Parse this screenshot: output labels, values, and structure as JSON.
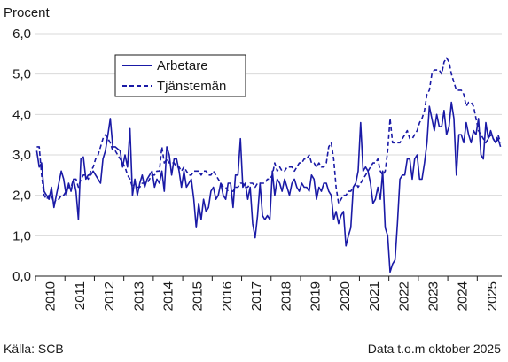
{
  "chart_data": {
    "type": "line",
    "ylabel": "Procent",
    "ylim": [
      0,
      6
    ],
    "yticks": [
      "0,0",
      "1,0",
      "2,0",
      "3,0",
      "4,0",
      "5,0",
      "6,0"
    ],
    "xticks": [
      "2010",
      "2011",
      "2012",
      "2013",
      "2014",
      "2015",
      "2016",
      "2017",
      "2018",
      "2019",
      "2020",
      "2021",
      "2022",
      "2023",
      "2024",
      "2025"
    ],
    "x_start": "2010-01",
    "x_end": "2025-10",
    "grid": "horizontal",
    "legend_position": "top-left",
    "colors": {
      "series": "#1a1aa6",
      "grid": "#d9d9d9",
      "axis": "#1a1a1a"
    },
    "series": [
      {
        "name": "Arbetare",
        "line_style": "solid",
        "x": [
          "2010-01",
          "2010-02",
          "2010-03",
          "2010-04",
          "2010-05",
          "2010-06",
          "2010-07",
          "2010-08",
          "2010-09",
          "2010-10",
          "2010-11",
          "2010-12",
          "2011-01",
          "2011-02",
          "2011-03",
          "2011-04",
          "2011-05",
          "2011-06",
          "2011-07",
          "2011-08",
          "2011-09",
          "2011-10",
          "2011-11",
          "2011-12",
          "2012-01",
          "2012-02",
          "2012-03",
          "2012-04",
          "2012-05",
          "2012-06",
          "2012-07",
          "2012-08",
          "2012-09",
          "2012-10",
          "2012-11",
          "2012-12",
          "2013-01",
          "2013-02",
          "2013-03",
          "2013-04",
          "2013-05",
          "2013-06",
          "2013-07",
          "2013-08",
          "2013-09",
          "2013-10",
          "2013-11",
          "2013-12",
          "2014-01",
          "2014-02",
          "2014-03",
          "2014-04",
          "2014-05",
          "2014-06",
          "2014-07",
          "2014-08",
          "2014-09",
          "2014-10",
          "2014-11",
          "2014-12",
          "2015-01",
          "2015-02",
          "2015-03",
          "2015-04",
          "2015-05",
          "2015-06",
          "2015-07",
          "2015-08",
          "2015-09",
          "2015-10",
          "2015-11",
          "2015-12",
          "2016-01",
          "2016-02",
          "2016-03",
          "2016-04",
          "2016-05",
          "2016-06",
          "2016-07",
          "2016-08",
          "2016-09",
          "2016-10",
          "2016-11",
          "2016-12",
          "2017-01",
          "2017-02",
          "2017-03",
          "2017-04",
          "2017-05",
          "2017-06",
          "2017-07",
          "2017-08",
          "2017-09",
          "2017-10",
          "2017-11",
          "2017-12",
          "2018-01",
          "2018-02",
          "2018-03",
          "2018-04",
          "2018-05",
          "2018-06",
          "2018-07",
          "2018-08",
          "2018-09",
          "2018-10",
          "2018-11",
          "2018-12",
          "2019-01",
          "2019-02",
          "2019-03",
          "2019-04",
          "2019-05",
          "2019-06",
          "2019-07",
          "2019-08",
          "2019-09",
          "2019-10",
          "2019-11",
          "2019-12",
          "2020-01",
          "2020-02",
          "2020-03",
          "2020-04",
          "2020-05",
          "2020-06",
          "2020-07",
          "2020-08",
          "2020-09",
          "2020-10",
          "2020-11",
          "2020-12",
          "2021-01",
          "2021-02",
          "2021-03",
          "2021-04",
          "2021-05",
          "2021-06",
          "2021-07",
          "2021-08",
          "2021-09",
          "2021-10",
          "2021-11",
          "2021-12",
          "2022-01",
          "2022-02",
          "2022-03",
          "2022-04",
          "2022-05",
          "2022-06",
          "2022-07",
          "2022-08",
          "2022-09",
          "2022-10",
          "2022-11",
          "2022-12",
          "2023-01",
          "2023-02",
          "2023-03",
          "2023-04",
          "2023-05",
          "2023-06",
          "2023-07",
          "2023-08",
          "2023-09",
          "2023-10",
          "2023-11",
          "2023-12",
          "2024-01",
          "2024-02",
          "2024-03",
          "2024-04",
          "2024-05",
          "2024-06",
          "2024-07",
          "2024-08",
          "2024-09",
          "2024-10",
          "2024-11",
          "2024-12",
          "2025-01",
          "2025-02",
          "2025-03",
          "2025-04",
          "2025-05",
          "2025-06",
          "2025-07",
          "2025-08",
          "2025-09",
          "2025-10"
        ],
        "y": [
          3.1,
          2.7,
          2.8,
          2.1,
          2.0,
          1.9,
          2.2,
          1.7,
          2.0,
          2.3,
          2.6,
          2.4,
          2.0,
          2.3,
          2.1,
          2.4,
          2.1,
          1.4,
          2.9,
          2.95,
          2.4,
          2.5,
          2.5,
          2.6,
          2.5,
          2.4,
          2.3,
          2.9,
          3.1,
          3.5,
          3.9,
          3.2,
          3.2,
          3.15,
          3.1,
          2.7,
          3.0,
          2.7,
          3.65,
          2.0,
          2.4,
          2.0,
          2.3,
          2.5,
          2.2,
          2.4,
          2.5,
          2.6,
          2.2,
          2.4,
          2.3,
          2.6,
          2.1,
          3.2,
          3.0,
          2.5,
          2.9,
          2.9,
          2.6,
          2.2,
          2.6,
          2.2,
          2.3,
          2.4,
          1.9,
          1.2,
          1.8,
          1.4,
          1.9,
          1.6,
          1.7,
          2.1,
          2.2,
          1.9,
          2.0,
          2.3,
          2.0,
          1.9,
          2.3,
          2.3,
          1.7,
          2.5,
          2.5,
          3.4,
          2.2,
          2.3,
          1.9,
          2.2,
          1.3,
          0.95,
          1.5,
          2.3,
          1.5,
          1.4,
          1.5,
          1.4,
          2.6,
          2.0,
          2.4,
          2.3,
          2.1,
          2.4,
          2.2,
          2.0,
          2.3,
          2.4,
          2.2,
          2.1,
          2.3,
          2.2,
          2.2,
          2.1,
          2.5,
          2.4,
          1.9,
          2.2,
          2.1,
          2.3,
          2.3,
          2.1,
          2.0,
          1.4,
          1.6,
          1.3,
          1.5,
          1.6,
          0.75,
          1.0,
          1.2,
          2.2,
          2.3,
          2.6,
          3.8,
          2.6,
          2.7,
          2.6,
          2.3,
          1.8,
          1.9,
          2.2,
          1.9,
          2.6,
          1.2,
          1.0,
          0.1,
          0.3,
          0.4,
          1.3,
          2.4,
          2.5,
          2.5,
          2.9,
          2.9,
          2.4,
          2.9,
          3.0,
          2.4,
          2.4,
          2.8,
          3.3,
          4.2,
          3.9,
          3.6,
          4.0,
          3.7,
          3.7,
          4.1,
          3.5,
          3.7,
          4.3,
          3.9,
          2.5,
          3.5,
          3.5,
          3.3,
          3.8,
          3.5,
          3.3,
          3.6,
          3.5,
          3.9,
          3.0,
          2.9,
          3.8,
          3.4,
          3.6,
          3.4,
          3.3,
          3.4,
          3.2
        ]
      },
      {
        "name": "Tjänstemän",
        "line_style": "dashed",
        "x": [
          "2010-01",
          "2010-02",
          "2010-03",
          "2010-04",
          "2010-05",
          "2010-06",
          "2010-07",
          "2010-08",
          "2010-09",
          "2010-10",
          "2010-11",
          "2010-12",
          "2011-01",
          "2011-02",
          "2011-03",
          "2011-04",
          "2011-05",
          "2011-06",
          "2011-07",
          "2011-08",
          "2011-09",
          "2011-10",
          "2011-11",
          "2011-12",
          "2012-01",
          "2012-02",
          "2012-03",
          "2012-04",
          "2012-05",
          "2012-06",
          "2012-07",
          "2012-08",
          "2012-09",
          "2012-10",
          "2012-11",
          "2012-12",
          "2013-01",
          "2013-02",
          "2013-03",
          "2013-04",
          "2013-05",
          "2013-06",
          "2013-07",
          "2013-08",
          "2013-09",
          "2013-10",
          "2013-11",
          "2013-12",
          "2014-01",
          "2014-02",
          "2014-03",
          "2014-04",
          "2014-05",
          "2014-06",
          "2014-07",
          "2014-08",
          "2014-09",
          "2014-10",
          "2014-11",
          "2014-12",
          "2015-01",
          "2015-02",
          "2015-03",
          "2015-04",
          "2015-05",
          "2015-06",
          "2015-07",
          "2015-08",
          "2015-09",
          "2015-10",
          "2015-11",
          "2015-12",
          "2016-01",
          "2016-02",
          "2016-03",
          "2016-04",
          "2016-05",
          "2016-06",
          "2016-07",
          "2016-08",
          "2016-09",
          "2016-10",
          "2016-11",
          "2016-12",
          "2017-01",
          "2017-02",
          "2017-03",
          "2017-04",
          "2017-05",
          "2017-06",
          "2017-07",
          "2017-08",
          "2017-09",
          "2017-10",
          "2017-11",
          "2017-12",
          "2018-01",
          "2018-02",
          "2018-03",
          "2018-04",
          "2018-05",
          "2018-06",
          "2018-07",
          "2018-08",
          "2018-09",
          "2018-10",
          "2018-11",
          "2018-12",
          "2019-01",
          "2019-02",
          "2019-03",
          "2019-04",
          "2019-05",
          "2019-06",
          "2019-07",
          "2019-08",
          "2019-09",
          "2019-10",
          "2019-11",
          "2019-12",
          "2020-01",
          "2020-02",
          "2020-03",
          "2020-04",
          "2020-05",
          "2020-06",
          "2020-07",
          "2020-08",
          "2020-09",
          "2020-10",
          "2020-11",
          "2020-12",
          "2021-01",
          "2021-02",
          "2021-03",
          "2021-04",
          "2021-05",
          "2021-06",
          "2021-07",
          "2021-08",
          "2021-09",
          "2021-10",
          "2021-11",
          "2021-12",
          "2022-01",
          "2022-02",
          "2022-03",
          "2022-04",
          "2022-05",
          "2022-06",
          "2022-07",
          "2022-08",
          "2022-09",
          "2022-10",
          "2022-11",
          "2022-12",
          "2023-01",
          "2023-02",
          "2023-03",
          "2023-04",
          "2023-05",
          "2023-06",
          "2023-07",
          "2023-08",
          "2023-09",
          "2023-10",
          "2023-11",
          "2023-12",
          "2024-01",
          "2024-02",
          "2024-03",
          "2024-04",
          "2024-05",
          "2024-06",
          "2024-07",
          "2024-08",
          "2024-09",
          "2024-10",
          "2024-11",
          "2024-12",
          "2025-01",
          "2025-02",
          "2025-03",
          "2025-04",
          "2025-05",
          "2025-06",
          "2025-07",
          "2025-08",
          "2025-09",
          "2025-10"
        ],
        "y": [
          3.2,
          3.2,
          2.5,
          2.0,
          1.9,
          2.0,
          2.0,
          1.8,
          1.9,
          1.9,
          2.0,
          2.0,
          2.1,
          2.2,
          2.2,
          2.4,
          2.4,
          2.2,
          2.4,
          2.5,
          2.5,
          2.4,
          2.6,
          2.7,
          2.9,
          3.0,
          3.2,
          3.4,
          3.5,
          3.4,
          3.3,
          3.1,
          3.1,
          3.0,
          2.9,
          2.8,
          2.7,
          2.5,
          2.4,
          2.2,
          2.3,
          2.2,
          2.2,
          2.3,
          2.3,
          2.3,
          2.4,
          2.5,
          2.5,
          2.6,
          2.6,
          3.2,
          2.8,
          2.9,
          2.8,
          2.8,
          2.8,
          2.7,
          2.7,
          2.6,
          2.7,
          2.6,
          2.5,
          2.5,
          2.6,
          2.6,
          2.6,
          2.5,
          2.6,
          2.6,
          2.5,
          2.5,
          2.6,
          2.5,
          2.4,
          2.3,
          2.2,
          2.2,
          2.1,
          2.1,
          2.1,
          2.2,
          2.2,
          2.3,
          2.3,
          2.2,
          2.2,
          2.3,
          2.3,
          2.2,
          2.3,
          2.3,
          2.3,
          2.3,
          2.4,
          2.4,
          2.5,
          2.8,
          2.6,
          2.7,
          2.6,
          2.6,
          2.7,
          2.7,
          2.7,
          2.6,
          2.7,
          2.8,
          2.8,
          2.9,
          2.9,
          3.0,
          2.8,
          2.8,
          2.7,
          2.8,
          2.7,
          2.7,
          2.8,
          3.2,
          3.3,
          2.9,
          2.2,
          1.8,
          1.9,
          2.0,
          2.0,
          2.1,
          2.1,
          2.2,
          2.3,
          2.2,
          2.3,
          2.4,
          2.5,
          2.6,
          2.7,
          2.8,
          2.8,
          2.9,
          2.6,
          2.5,
          2.6,
          3.1,
          3.9,
          3.3,
          3.3,
          3.3,
          3.3,
          3.4,
          3.5,
          3.6,
          3.4,
          3.4,
          3.5,
          3.6,
          3.8,
          3.9,
          4.1,
          4.5,
          4.6,
          5.0,
          5.1,
          5.1,
          5.1,
          5.0,
          5.3,
          5.4,
          5.3,
          5.0,
          4.8,
          4.6,
          4.6,
          4.6,
          4.5,
          4.2,
          4.3,
          4.3,
          4.2,
          3.9,
          3.6,
          3.5,
          3.4,
          3.3,
          3.4,
          3.5,
          3.4,
          3.3,
          3.5,
          3.3
        ]
      }
    ]
  },
  "footer": {
    "source": "Källa: SCB",
    "note": "Data t.o.m oktober 2025"
  }
}
